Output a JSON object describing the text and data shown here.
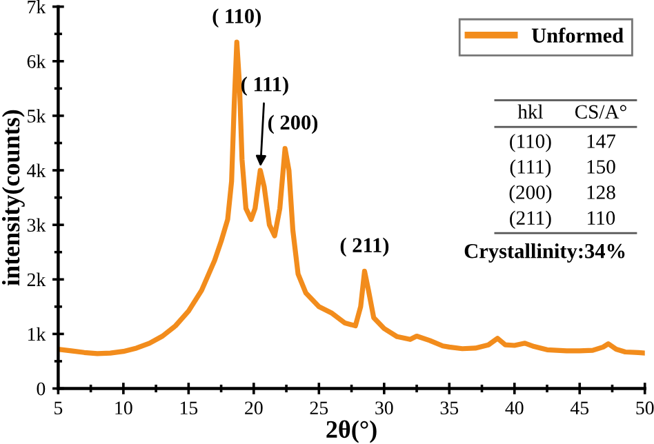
{
  "chart_data": {
    "type": "line",
    "xlabel": "2θ(°)",
    "ylabel": "intensity(counts)",
    "x": [
      5,
      6,
      7,
      8,
      9,
      10,
      11,
      12,
      13,
      14,
      15,
      16,
      17,
      17.5,
      18,
      18.3,
      18.5,
      18.7,
      18.9,
      19.1,
      19.4,
      19.8,
      20.1,
      20.5,
      20.8,
      21.2,
      21.6,
      22.0,
      22.4,
      22.7,
      23.0,
      23.4,
      24,
      25,
      26,
      27,
      27.8,
      28.2,
      28.5,
      28.8,
      29.2,
      30,
      31,
      32,
      32.5,
      33.5,
      34.5,
      35,
      36,
      37,
      38,
      38.7,
      39.3,
      40,
      40.8,
      41.5,
      42.5,
      44,
      45,
      46,
      46.8,
      47.2,
      47.8,
      48.5,
      49.5,
      50
    ],
    "series": [
      {
        "name": "Unformed",
        "color": "#f28c1c",
        "values": [
          720,
          690,
          660,
          640,
          650,
          680,
          740,
          830,
          960,
          1150,
          1420,
          1800,
          2350,
          2700,
          3100,
          3800,
          5200,
          6350,
          5600,
          4200,
          3300,
          3100,
          3300,
          4000,
          3700,
          3000,
          2800,
          3300,
          4400,
          4000,
          2900,
          2100,
          1750,
          1500,
          1380,
          1200,
          1150,
          1500,
          2150,
          1800,
          1300,
          1100,
          950,
          900,
          960,
          880,
          780,
          760,
          730,
          740,
          800,
          920,
          800,
          790,
          830,
          770,
          710,
          690,
          690,
          700,
          760,
          820,
          720,
          670,
          660,
          650
        ]
      }
    ],
    "xlim": [
      5,
      50
    ],
    "xticks": [
      5,
      10,
      15,
      20,
      25,
      30,
      35,
      40,
      45,
      50
    ],
    "ylim": [
      0,
      7000
    ],
    "yticks": [
      0,
      {
        "value": 1000,
        "label": "1k"
      },
      {
        "value": 2000,
        "label": "2k"
      },
      {
        "value": 3000,
        "label": "3k"
      },
      {
        "value": 4000,
        "label": "4k"
      },
      {
        "value": 5000,
        "label": "5k"
      },
      {
        "value": 6000,
        "label": "6k"
      },
      {
        "value": 7000,
        "label": "7k"
      }
    ],
    "grid": false,
    "legend": "top right",
    "marker": "none",
    "line_style": "solid",
    "annotations": [
      {
        "text": "( 110)",
        "x": 18.7,
        "y": 6350
      },
      {
        "text": "( 111)",
        "x": 20.5,
        "y": 4000
      },
      {
        "text": "( 200)",
        "x": 22.4,
        "y": 4400
      },
      {
        "text": "( 211)",
        "x": 28.5,
        "y": 2150
      },
      "hkl",
      "CS/A°",
      "(110)",
      "147",
      "(111)",
      "150",
      "(200)",
      "128",
      "(211)",
      "110",
      "Crystallinity:34%"
    ]
  }
}
